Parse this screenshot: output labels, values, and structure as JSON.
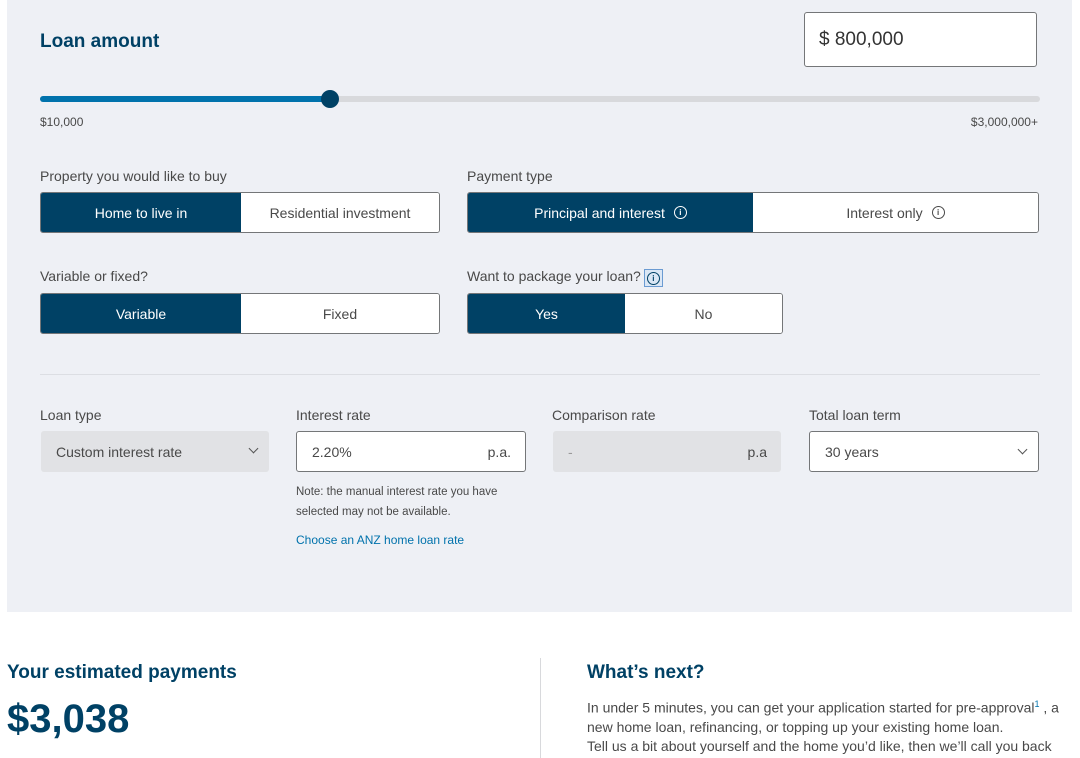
{
  "loan_amount": {
    "title": "Loan amount",
    "value": "$ 800,000",
    "slider_min_label": "$10,000",
    "slider_max_label": "$3,000,000+",
    "slider_fraction": 0.29
  },
  "property": {
    "label": "Property you would like to buy",
    "options": [
      "Home to live in",
      "Residential investment"
    ],
    "selected": "Home to live in"
  },
  "payment_type": {
    "label": "Payment type",
    "options": [
      "Principal and interest",
      "Interest only"
    ],
    "selected": "Principal and interest"
  },
  "rate_kind": {
    "label": "Variable or fixed?",
    "options": [
      "Variable",
      "Fixed"
    ],
    "selected": "Variable"
  },
  "package": {
    "label": "Want to package your loan?",
    "options": [
      "Yes",
      "No"
    ],
    "selected": "Yes"
  },
  "loan_type": {
    "label": "Loan type",
    "value": "Custom interest rate"
  },
  "interest_rate": {
    "label": "Interest rate",
    "value": "2.20%",
    "suffix": "p.a.",
    "note": "Note: the manual interest rate you have selected may not be available.",
    "link": "Choose an ANZ home loan rate"
  },
  "comparison_rate": {
    "label": "Comparison rate",
    "value": "-",
    "suffix": "p.a"
  },
  "loan_term": {
    "label": "Total loan term",
    "value": "30 years"
  },
  "estimate": {
    "title": "Your estimated payments",
    "value": "$3,038"
  },
  "whats_next": {
    "title": "What’s next?",
    "text_part1": "In under 5 minutes, you can get your application started for pre-approval",
    "sup": "1",
    "text_part2": " , a new home loan, refinancing, or topping up your existing home loan.",
    "text_cut": "Tell us a bit about yourself and the home you’d like, then we’ll call you back"
  },
  "colors": {
    "brand_navy": "#004165",
    "slider_fill": "#0072ac",
    "panel_bg": "#eef0f5",
    "link": "#0072ac"
  },
  "icons": {
    "info": "info-icon",
    "dropdown": "chevron-down-icon"
  }
}
